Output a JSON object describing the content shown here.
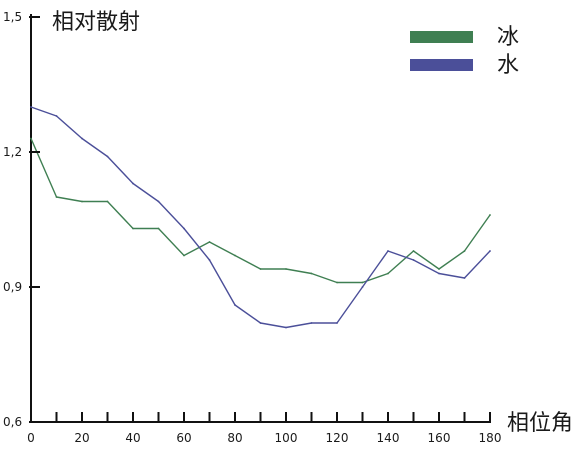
{
  "chart_data": {
    "type": "line",
    "xlabel": "相位角",
    "ylabel": "相对散射",
    "xlim": [
      0,
      180
    ],
    "ylim": [
      0.6,
      1.5
    ],
    "x_ticks": [
      0,
      20,
      40,
      60,
      80,
      100,
      120,
      140,
      160,
      180
    ],
    "x_tick_labels": [
      "0",
      "20",
      "40",
      "60",
      "80",
      "100",
      "120",
      "140",
      "160",
      "180"
    ],
    "y_ticks": [
      0.6,
      0.9,
      1.2,
      1.5
    ],
    "y_tick_labels": [
      "0,6",
      "0,9",
      "1,2",
      "1,5"
    ],
    "grid": false,
    "legend_position": "top-right",
    "series": [
      {
        "name": "冰",
        "color": "#3f7f52",
        "x": [
          0,
          10,
          20,
          30,
          40,
          50,
          60,
          70,
          80,
          90,
          100,
          110,
          120,
          130,
          140,
          150,
          160,
          170,
          180
        ],
        "values": [
          1.23,
          1.1,
          1.09,
          1.09,
          1.03,
          1.03,
          0.97,
          1.0,
          0.97,
          0.94,
          0.94,
          0.93,
          0.91,
          0.91,
          0.93,
          0.98,
          0.94,
          0.98,
          1.06
        ]
      },
      {
        "name": "水",
        "color": "#4b4f99",
        "x": [
          0,
          10,
          20,
          30,
          40,
          50,
          60,
          70,
          80,
          90,
          100,
          110,
          120,
          130,
          140,
          150,
          160,
          170,
          180
        ],
        "values": [
          1.3,
          1.28,
          1.23,
          1.19,
          1.13,
          1.09,
          1.03,
          0.96,
          0.86,
          0.82,
          0.81,
          0.82,
          0.82,
          0.9,
          0.98,
          0.96,
          0.93,
          0.92,
          0.98
        ]
      }
    ]
  }
}
